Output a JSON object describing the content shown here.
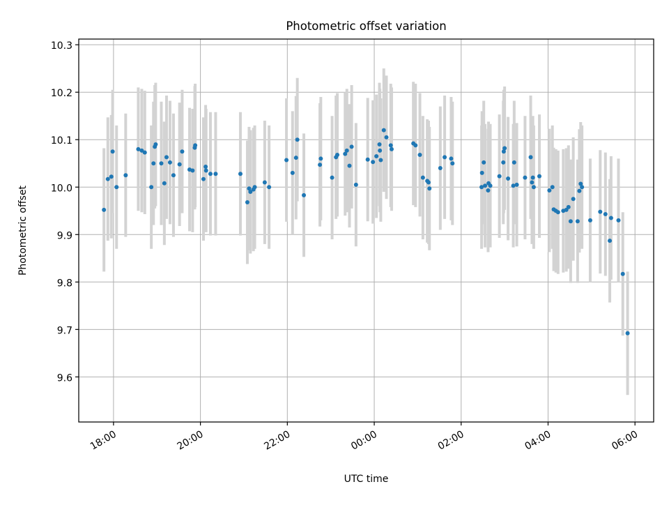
{
  "chart_data": {
    "type": "scatter",
    "title": "Photometric offset variation",
    "xlabel": "UTC time",
    "ylabel": "Photometric offset",
    "x_ticks": [
      "18:00",
      "20:00",
      "22:00",
      "00:00",
      "02:00",
      "04:00",
      "06:00"
    ],
    "x_tick_hours": [
      18,
      20,
      22,
      24,
      26,
      28,
      30
    ],
    "x_range_hours": [
      17.2,
      30.43
    ],
    "y_ticks": [
      "9.6",
      "9.7",
      "9.8",
      "9.9",
      "10.0",
      "10.1",
      "10.2",
      "10.3"
    ],
    "y_tick_values": [
      9.6,
      9.7,
      9.8,
      9.9,
      10.0,
      10.1,
      10.2,
      10.3
    ],
    "ylim": [
      9.505,
      10.312
    ],
    "grid": true,
    "colors": {
      "points": "#1f77b4",
      "error_bars": "#d3d3d3",
      "grid": "#b0b0b0",
      "axes": "#000000"
    },
    "series": [
      {
        "error_half_width": 0.13,
        "points": [
          {
            "t": 17.78,
            "y": 9.952
          },
          {
            "t": 17.87,
            "y": 10.017
          },
          {
            "t": 17.95,
            "y": 10.022
          },
          {
            "t": 17.98,
            "y": 10.075
          },
          {
            "t": 18.07,
            "y": 10.0
          },
          {
            "t": 18.28,
            "y": 10.025
          },
          {
            "t": 18.57,
            "y": 10.08
          },
          {
            "t": 18.65,
            "y": 10.077
          },
          {
            "t": 18.72,
            "y": 10.073
          },
          {
            "t": 18.87,
            "y": 10.0
          },
          {
            "t": 18.92,
            "y": 10.05
          },
          {
            "t": 18.95,
            "y": 10.085
          },
          {
            "t": 18.97,
            "y": 10.09
          },
          {
            "t": 19.1,
            "y": 10.05
          },
          {
            "t": 19.17,
            "y": 10.008
          },
          {
            "t": 19.22,
            "y": 10.063
          },
          {
            "t": 19.3,
            "y": 10.052
          },
          {
            "t": 19.38,
            "y": 10.025
          },
          {
            "t": 19.52,
            "y": 10.048
          },
          {
            "t": 19.58,
            "y": 10.075
          },
          {
            "t": 19.75,
            "y": 10.037
          },
          {
            "t": 19.82,
            "y": 10.035
          },
          {
            "t": 19.87,
            "y": 10.083
          },
          {
            "t": 19.88,
            "y": 10.088
          },
          {
            "t": 20.07,
            "y": 10.017
          },
          {
            "t": 20.12,
            "y": 10.043
          },
          {
            "t": 20.13,
            "y": 10.035
          },
          {
            "t": 20.23,
            "y": 10.028
          },
          {
            "t": 20.35,
            "y": 10.028
          },
          {
            "t": 20.92,
            "y": 10.028
          },
          {
            "t": 21.08,
            "y": 9.968
          },
          {
            "t": 21.12,
            "y": 9.997
          },
          {
            "t": 21.15,
            "y": 9.99
          },
          {
            "t": 21.22,
            "y": 9.995
          },
          {
            "t": 21.25,
            "y": 10.0
          },
          {
            "t": 21.48,
            "y": 10.01
          },
          {
            "t": 21.58,
            "y": 10.0
          },
          {
            "t": 21.98,
            "y": 10.057
          },
          {
            "t": 22.12,
            "y": 10.03
          },
          {
            "t": 22.2,
            "y": 10.062
          },
          {
            "t": 22.23,
            "y": 10.1
          },
          {
            "t": 22.38,
            "y": 9.983
          },
          {
            "t": 22.75,
            "y": 10.047
          },
          {
            "t": 22.77,
            "y": 10.06
          },
          {
            "t": 23.03,
            "y": 10.02
          },
          {
            "t": 23.12,
            "y": 10.063
          },
          {
            "t": 23.15,
            "y": 10.068
          },
          {
            "t": 23.33,
            "y": 10.07
          },
          {
            "t": 23.37,
            "y": 10.077
          },
          {
            "t": 23.43,
            "y": 10.045
          },
          {
            "t": 23.48,
            "y": 10.085
          },
          {
            "t": 23.58,
            "y": 10.005
          },
          {
            "t": 23.85,
            "y": 10.058
          },
          {
            "t": 23.97,
            "y": 10.053
          },
          {
            "t": 24.05,
            "y": 10.065
          },
          {
            "t": 24.12,
            "y": 10.09
          },
          {
            "t": 24.13,
            "y": 10.077
          },
          {
            "t": 24.15,
            "y": 10.057
          },
          {
            "t": 24.22,
            "y": 10.12
          },
          {
            "t": 24.28,
            "y": 10.105
          },
          {
            "t": 24.38,
            "y": 10.088
          },
          {
            "t": 24.4,
            "y": 10.08
          },
          {
            "t": 24.9,
            "y": 10.092
          },
          {
            "t": 24.95,
            "y": 10.088
          },
          {
            "t": 25.05,
            "y": 10.068
          },
          {
            "t": 25.12,
            "y": 10.02
          },
          {
            "t": 25.22,
            "y": 10.013
          },
          {
            "t": 25.25,
            "y": 10.01
          },
          {
            "t": 25.27,
            "y": 9.997
          },
          {
            "t": 25.52,
            "y": 10.04
          },
          {
            "t": 25.62,
            "y": 10.063
          },
          {
            "t": 25.77,
            "y": 10.06
          },
          {
            "t": 25.8,
            "y": 10.05
          },
          {
            "t": 26.47,
            "y": 10.0
          },
          {
            "t": 26.48,
            "y": 10.03
          },
          {
            "t": 26.52,
            "y": 10.052
          },
          {
            "t": 26.55,
            "y": 10.003
          },
          {
            "t": 26.62,
            "y": 9.993
          },
          {
            "t": 26.63,
            "y": 10.008
          },
          {
            "t": 26.67,
            "y": 10.003
          },
          {
            "t": 26.88,
            "y": 10.023
          },
          {
            "t": 26.97,
            "y": 10.052
          },
          {
            "t": 26.98,
            "y": 10.075
          },
          {
            "t": 27.0,
            "y": 10.082
          },
          {
            "t": 27.08,
            "y": 10.018
          },
          {
            "t": 27.2,
            "y": 10.003
          },
          {
            "t": 27.22,
            "y": 10.052
          },
          {
            "t": 27.28,
            "y": 10.005
          },
          {
            "t": 27.47,
            "y": 10.02
          },
          {
            "t": 27.6,
            "y": 10.063
          },
          {
            "t": 27.63,
            "y": 10.01
          },
          {
            "t": 27.65,
            "y": 10.02
          },
          {
            "t": 27.67,
            "y": 10.0
          },
          {
            "t": 27.8,
            "y": 10.023
          },
          {
            "t": 28.03,
            "y": 9.993
          },
          {
            "t": 28.1,
            "y": 10.0
          },
          {
            "t": 28.13,
            "y": 9.953
          },
          {
            "t": 28.18,
            "y": 9.95
          },
          {
            "t": 28.23,
            "y": 9.947
          },
          {
            "t": 28.35,
            "y": 9.95
          },
          {
            "t": 28.42,
            "y": 9.952
          },
          {
            "t": 28.47,
            "y": 9.958
          },
          {
            "t": 28.52,
            "y": 9.928
          },
          {
            "t": 28.58,
            "y": 9.975
          },
          {
            "t": 28.68,
            "y": 9.928
          },
          {
            "t": 28.72,
            "y": 9.992
          },
          {
            "t": 28.75,
            "y": 10.007
          },
          {
            "t": 28.78,
            "y": 10.0
          },
          {
            "t": 28.97,
            "y": 9.93
          },
          {
            "t": 29.2,
            "y": 9.948
          },
          {
            "t": 29.32,
            "y": 9.943
          },
          {
            "t": 29.42,
            "y": 9.887
          },
          {
            "t": 29.45,
            "y": 9.935
          },
          {
            "t": 29.62,
            "y": 9.93
          },
          {
            "t": 29.72,
            "y": 9.817
          },
          {
            "t": 29.83,
            "y": 9.692
          }
        ]
      }
    ]
  }
}
